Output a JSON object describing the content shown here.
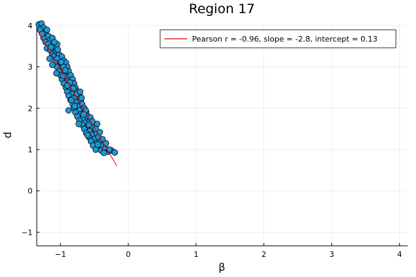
{
  "chart_data": {
    "type": "scatter",
    "title": "Region 17",
    "xlabel": "β",
    "ylabel": "d",
    "xlim": [
      -1.35,
      4.12
    ],
    "ylim": [
      -1.33,
      4.05
    ],
    "xticks": [
      -1,
      0,
      1,
      2,
      3,
      4
    ],
    "yticks": [
      -1,
      0,
      1,
      2,
      3,
      4
    ],
    "xtick_labels": [
      "−1",
      "0",
      "1",
      "2",
      "3",
      "4"
    ],
    "ytick_labels": [
      "−1",
      "0",
      "1",
      "2",
      "3",
      "4"
    ],
    "grid": true,
    "legend_position": "top-right",
    "point_color": "#1f97d4",
    "fit_color": "#e8000b",
    "fit": {
      "label": "Pearson r = -0.96, slope = -2.8, intercept = 0.13",
      "slope": -2.8,
      "intercept": 0.13,
      "x_range": [
        -1.33,
        -0.17
      ]
    },
    "points": [
      [
        -1.32,
        4.03
      ],
      [
        -1.28,
        4.05
      ],
      [
        -1.25,
        3.95
      ],
      [
        -1.3,
        3.9
      ],
      [
        -1.22,
        3.85
      ],
      [
        -1.2,
        3.9
      ],
      [
        -1.18,
        3.75
      ],
      [
        -1.25,
        3.7
      ],
      [
        -1.15,
        3.65
      ],
      [
        -1.22,
        3.6
      ],
      [
        -1.12,
        3.7
      ],
      [
        -1.18,
        3.55
      ],
      [
        -1.1,
        3.5
      ],
      [
        -1.2,
        3.45
      ],
      [
        -1.05,
        3.55
      ],
      [
        -1.15,
        3.4
      ],
      [
        -1.08,
        3.35
      ],
      [
        -1.12,
        3.3
      ],
      [
        -1.02,
        3.3
      ],
      [
        -1.1,
        3.25
      ],
      [
        -0.98,
        3.25
      ],
      [
        -1.05,
        3.2
      ],
      [
        -0.95,
        3.15
      ],
      [
        -1.08,
        3.1
      ],
      [
        -1.0,
        3.05
      ],
      [
        -0.92,
        3.1
      ],
      [
        -1.05,
        3.0
      ],
      [
        -0.97,
        2.95
      ],
      [
        -1.12,
        3.05
      ],
      [
        -0.9,
        3.0
      ],
      [
        -1.02,
        2.9
      ],
      [
        -0.95,
        2.85
      ],
      [
        -0.88,
        2.9
      ],
      [
        -1.0,
        2.8
      ],
      [
        -0.92,
        2.75
      ],
      [
        -0.85,
        2.8
      ],
      [
        -0.98,
        2.7
      ],
      [
        -0.9,
        2.65
      ],
      [
        -0.82,
        2.7
      ],
      [
        -0.95,
        2.6
      ],
      [
        -0.87,
        2.55
      ],
      [
        -0.8,
        2.6
      ],
      [
        -0.92,
        2.5
      ],
      [
        -0.85,
        2.45
      ],
      [
        -0.78,
        2.5
      ],
      [
        -0.9,
        2.4
      ],
      [
        -0.82,
        2.35
      ],
      [
        -0.75,
        2.4
      ],
      [
        -0.88,
        2.3
      ],
      [
        -0.8,
        2.25
      ],
      [
        -0.72,
        2.3
      ],
      [
        -0.85,
        2.2
      ],
      [
        -0.77,
        2.15
      ],
      [
        -0.7,
        2.2
      ],
      [
        -0.82,
        2.1
      ],
      [
        -0.74,
        2.05
      ],
      [
        -0.68,
        2.1
      ],
      [
        -0.8,
        2.0
      ],
      [
        -0.72,
        1.95
      ],
      [
        -0.65,
        2.0
      ],
      [
        -0.78,
        1.9
      ],
      [
        -0.7,
        1.85
      ],
      [
        -0.62,
        1.9
      ],
      [
        -0.75,
        1.8
      ],
      [
        -0.67,
        1.75
      ],
      [
        -0.6,
        1.8
      ],
      [
        -0.72,
        1.7
      ],
      [
        -0.64,
        1.65
      ],
      [
        -0.57,
        1.7
      ],
      [
        -0.68,
        1.6
      ],
      [
        -0.6,
        1.55
      ],
      [
        -0.54,
        1.6
      ],
      [
        -0.65,
        1.5
      ],
      [
        -0.57,
        1.45
      ],
      [
        -0.5,
        1.5
      ],
      [
        -0.62,
        1.4
      ],
      [
        -0.54,
        1.35
      ],
      [
        -0.47,
        1.4
      ],
      [
        -0.58,
        1.3
      ],
      [
        -0.5,
        1.25
      ],
      [
        -0.44,
        1.3
      ],
      [
        -0.55,
        1.2
      ],
      [
        -0.47,
        1.15
      ],
      [
        -0.41,
        1.2
      ],
      [
        -0.52,
        1.1
      ],
      [
        -0.44,
        1.05
      ],
      [
        -0.38,
        1.1
      ],
      [
        -0.48,
        1.0
      ],
      [
        -0.4,
        0.98
      ],
      [
        -0.34,
        1.02
      ],
      [
        -0.3,
        0.95
      ],
      [
        -0.25,
        0.98
      ],
      [
        -0.2,
        0.93
      ],
      [
        -0.36,
        0.92
      ],
      [
        -0.45,
        1.12
      ],
      [
        -0.28,
        1.0
      ],
      [
        -1.27,
        3.8
      ],
      [
        -1.14,
        3.48
      ],
      [
        -1.04,
        3.42
      ],
      [
        -0.96,
        3.0
      ],
      [
        -1.06,
        2.85
      ],
      [
        -0.86,
        2.62
      ],
      [
        -0.96,
        2.78
      ],
      [
        -0.84,
        2.2
      ],
      [
        -0.9,
        2.55
      ],
      [
        -0.76,
        2.35
      ],
      [
        -0.79,
        2.05
      ],
      [
        -0.69,
        2.25
      ],
      [
        -0.73,
        1.62
      ],
      [
        -0.63,
        1.95
      ],
      [
        -0.56,
        1.78
      ],
      [
        -0.6,
        1.35
      ],
      [
        -0.52,
        1.55
      ],
      [
        -0.46,
        1.62
      ],
      [
        -0.42,
        1.42
      ],
      [
        -0.38,
        1.25
      ],
      [
        -0.48,
        1.5
      ],
      [
        -0.33,
        1.15
      ],
      [
        -0.93,
        2.92
      ],
      [
        -1.16,
        3.2
      ],
      [
        -0.71,
        2.4
      ],
      [
        -0.66,
        1.85
      ],
      [
        -0.58,
        1.6
      ],
      [
        -0.88,
        1.95
      ],
      [
        -0.99,
        3.12
      ],
      [
        -1.09,
        3.6
      ],
      [
        -0.81,
        2.48
      ],
      [
        -0.53,
        1.68
      ]
    ]
  }
}
